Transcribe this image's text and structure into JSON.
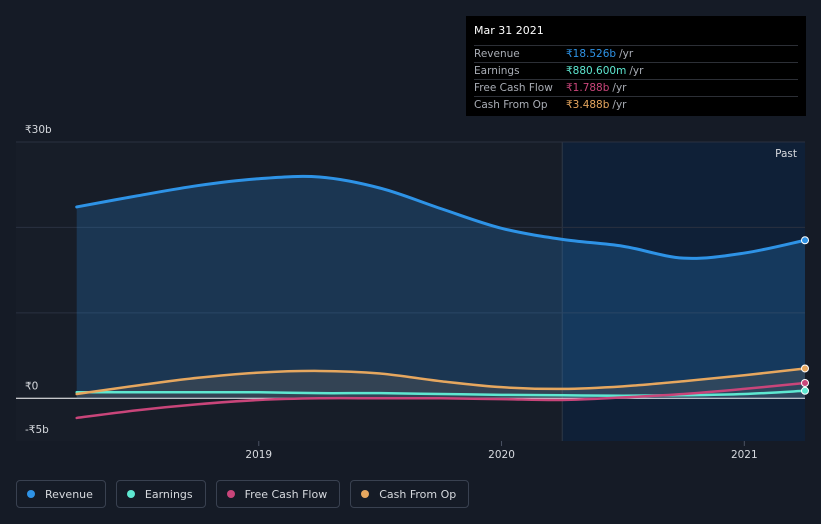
{
  "tooltip": {
    "date": "Mar 31 2021",
    "rows": [
      {
        "label": "Revenue",
        "value": "₹18.526b",
        "unit": "/yr",
        "color": "#2e93e6"
      },
      {
        "label": "Earnings",
        "value": "₹880.600m",
        "unit": "/yr",
        "color": "#5ee8d1"
      },
      {
        "label": "Free Cash Flow",
        "value": "₹1.788b",
        "unit": "/yr",
        "color": "#c9457a"
      },
      {
        "label": "Cash From Op",
        "value": "₹3.488b",
        "unit": "/yr",
        "color": "#e6a75f"
      }
    ]
  },
  "legend": [
    {
      "label": "Revenue",
      "color": "#2e93e6"
    },
    {
      "label": "Earnings",
      "color": "#5ee8d1"
    },
    {
      "label": "Free Cash Flow",
      "color": "#c9457a"
    },
    {
      "label": "Cash From Op",
      "color": "#e6a75f"
    }
  ],
  "chart_data": {
    "type": "line",
    "past_label": "Past",
    "y_tick_labels": [
      {
        "value": 30,
        "label": "₹30b"
      },
      {
        "value": 0,
        "label": "₹0"
      },
      {
        "value": -5,
        "label": "-₹5b"
      }
    ],
    "ylim": [
      -5,
      30
    ],
    "xlim": [
      2018.0,
      2021.25
    ],
    "x_ticks": [
      {
        "value": 2019.0,
        "label": "2019"
      },
      {
        "value": 2020.0,
        "label": "2020"
      },
      {
        "value": 2021.0,
        "label": "2021"
      }
    ],
    "past_start": 2020.25,
    "series": [
      {
        "name": "Revenue",
        "color": "#2e93e6",
        "filled": true,
        "x": [
          2018.25,
          2018.5,
          2018.75,
          2019.0,
          2019.25,
          2019.5,
          2019.75,
          2020.0,
          2020.25,
          2020.5,
          2020.75,
          2021.0,
          2021.25
        ],
        "y": [
          22.4,
          23.7,
          24.9,
          25.7,
          25.9,
          24.6,
          22.2,
          19.9,
          18.6,
          17.8,
          16.4,
          17.0,
          18.5
        ]
      },
      {
        "name": "Earnings",
        "color": "#5ee8d1",
        "filled": false,
        "x": [
          2018.25,
          2018.5,
          2018.75,
          2019.0,
          2019.25,
          2019.5,
          2019.75,
          2020.0,
          2020.25,
          2020.5,
          2020.75,
          2021.0,
          2021.25
        ],
        "y": [
          0.7,
          0.7,
          0.7,
          0.7,
          0.6,
          0.6,
          0.5,
          0.4,
          0.35,
          0.3,
          0.35,
          0.5,
          0.88
        ]
      },
      {
        "name": "Free Cash Flow",
        "color": "#c9457a",
        "filled": false,
        "x": [
          2018.25,
          2018.5,
          2018.75,
          2019.0,
          2019.25,
          2019.5,
          2019.75,
          2020.0,
          2020.25,
          2020.5,
          2020.75,
          2021.0,
          2021.25
        ],
        "y": [
          -2.3,
          -1.4,
          -0.7,
          -0.2,
          0.0,
          0.0,
          0.0,
          -0.1,
          -0.2,
          0.1,
          0.5,
          1.1,
          1.79
        ]
      },
      {
        "name": "Cash From Op",
        "color": "#e6a75f",
        "filled": true,
        "x": [
          2018.25,
          2018.5,
          2018.75,
          2019.0,
          2019.25,
          2019.5,
          2019.75,
          2020.0,
          2020.25,
          2020.5,
          2020.75,
          2021.0,
          2021.25
        ],
        "y": [
          0.5,
          1.5,
          2.4,
          3.0,
          3.2,
          2.9,
          2.0,
          1.3,
          1.1,
          1.4,
          2.0,
          2.7,
          3.49
        ]
      }
    ]
  }
}
